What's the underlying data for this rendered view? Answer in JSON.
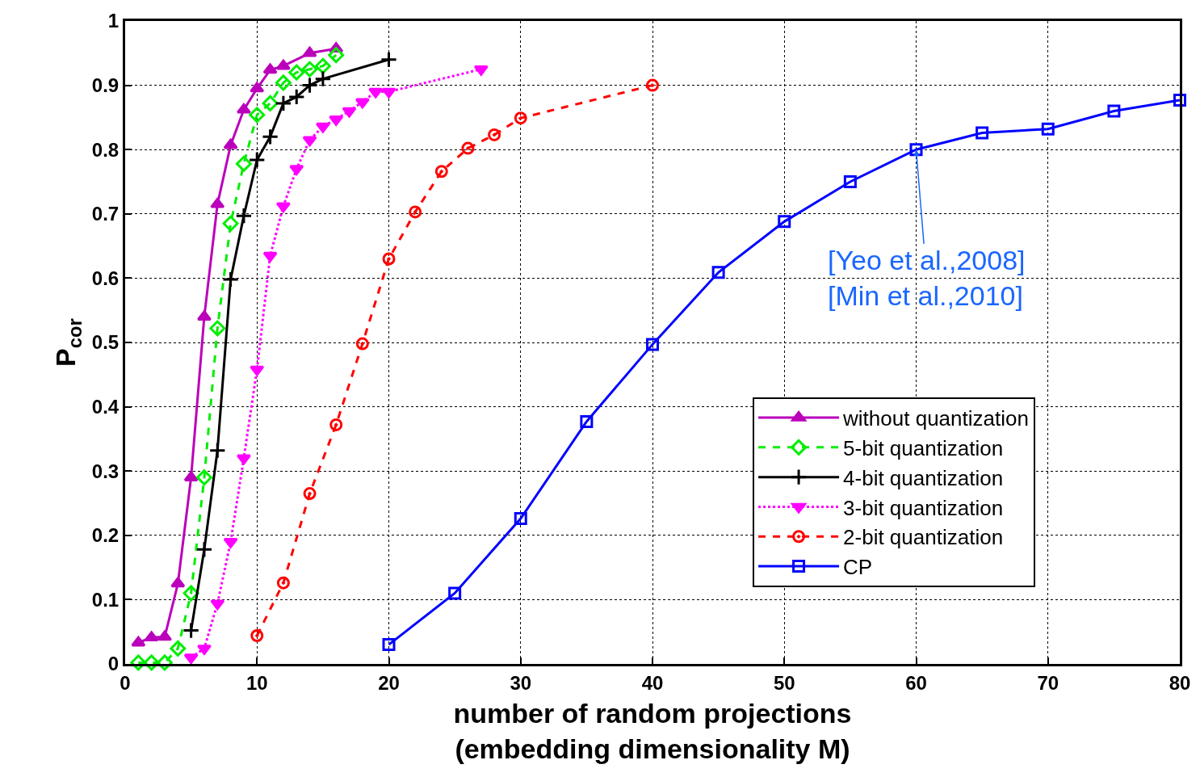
{
  "chart_data": {
    "type": "line",
    "xlabel": "number of random projections\n(embedding dimensionality M)",
    "ylabel": "P$_{cor}$",
    "xlim": [
      0,
      80
    ],
    "xticks": [
      0,
      10,
      20,
      30,
      40,
      50,
      60,
      70,
      80
    ],
    "ylim": [
      0,
      1
    ],
    "yticks": [
      0,
      0.1,
      0.2,
      0.3,
      0.4,
      0.5,
      0.6,
      0.7,
      0.8,
      0.9,
      1
    ],
    "grid": true,
    "legend": "bottom right",
    "annotations": [
      {
        "text": "[Yeo et al.,2008]\n[Min et al.,2010]",
        "x": 60,
        "y": 0.8
      }
    ],
    "series": [
      {
        "name": "without quantization",
        "color": "#bb00bb",
        "marker": "triangle",
        "line_style": "solid",
        "x": [
          1,
          2,
          3,
          4,
          5,
          6,
          7,
          8,
          9,
          10,
          11,
          12,
          14,
          16
        ],
        "values": [
          0.033,
          0.041,
          0.042,
          0.125,
          0.29,
          0.54,
          0.715,
          0.807,
          0.862,
          0.895,
          0.924,
          0.93,
          0.95,
          0.957
        ]
      },
      {
        "name": "5-bit quantization",
        "color": "#00ee00",
        "marker": "diamond",
        "line_style": "dashed",
        "x": [
          1,
          2,
          3,
          4,
          5,
          6,
          7,
          8,
          9,
          10,
          11,
          12,
          13,
          14,
          15,
          16
        ],
        "values": [
          0.002,
          0.002,
          0.002,
          0.024,
          0.11,
          0.29,
          0.522,
          0.685,
          0.778,
          0.854,
          0.872,
          0.904,
          0.92,
          0.925,
          0.93,
          0.947
        ]
      },
      {
        "name": "4-bit quantization",
        "color": "#000000",
        "marker": "cross",
        "line_style": "solid",
        "x": [
          5,
          6,
          7,
          8,
          9,
          10,
          11,
          12,
          13,
          14,
          15,
          20
        ],
        "values": [
          0.052,
          0.178,
          0.332,
          0.598,
          0.697,
          0.784,
          0.82,
          0.872,
          0.882,
          0.9,
          0.91,
          0.94
        ]
      },
      {
        "name": "3-bit quantization",
        "color": "#ff00ff",
        "marker": "triangle-down",
        "line_style": "dotted",
        "x": [
          5,
          6,
          7,
          8,
          9,
          10,
          11,
          12,
          13,
          14,
          15,
          16,
          17,
          18,
          19,
          20,
          27
        ],
        "values": [
          0.01,
          0.024,
          0.094,
          0.19,
          0.32,
          0.458,
          0.635,
          0.712,
          0.77,
          0.815,
          0.836,
          0.847,
          0.86,
          0.874,
          0.89,
          0.89,
          0.925
        ]
      },
      {
        "name": "2-bit quantization",
        "color": "#ff0000",
        "marker": "circle",
        "line_style": "dashed",
        "x": [
          10,
          12,
          14,
          16,
          18,
          20,
          22,
          24,
          26,
          28,
          30,
          40
        ],
        "values": [
          0.044,
          0.126,
          0.265,
          0.372,
          0.498,
          0.63,
          0.703,
          0.766,
          0.802,
          0.823,
          0.849,
          0.9
        ]
      },
      {
        "name": "CP",
        "color": "#0000ff",
        "marker": "square",
        "line_style": "solid",
        "x": [
          20,
          25,
          30,
          35,
          40,
          45,
          50,
          55,
          60,
          65,
          70,
          75,
          80
        ],
        "values": [
          0.03,
          0.11,
          0.226,
          0.377,
          0.497,
          0.609,
          0.688,
          0.75,
          0.8,
          0.826,
          0.832,
          0.86,
          0.877
        ]
      }
    ]
  }
}
